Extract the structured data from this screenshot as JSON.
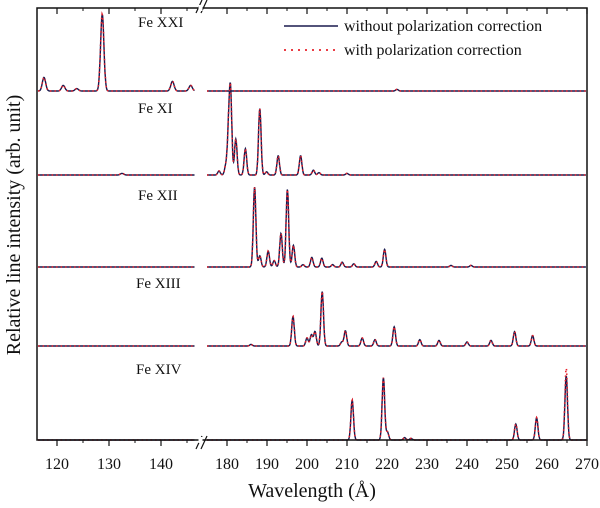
{
  "chart_data": {
    "type": "line",
    "title": "",
    "xlabel": "Wavelength (Å)",
    "ylabel": "Relative line intensity (arb. unit)",
    "xlim_segments": [
      [
        116,
        146
      ],
      [
        175,
        275
      ]
    ],
    "axis_break": "between 146 and 175",
    "x_ticks": [
      120,
      130,
      140,
      180,
      190,
      200,
      210,
      220,
      230,
      240,
      250,
      260,
      270
    ],
    "grid": false,
    "legend": {
      "placement": "top-right",
      "entries": [
        {
          "label": "without polarization correction",
          "style": "solid",
          "color": "#1a1a4e"
        },
        {
          "label": "with polarization correction",
          "style": "dotted",
          "color": "#e8202a"
        }
      ]
    },
    "panels": [
      {
        "label": "Fe XXI",
        "peaks": [
          [
            117.5,
            0.17
          ],
          [
            121.2,
            0.07
          ],
          [
            123.8,
            0.03
          ],
          [
            128.7,
            0.96
          ],
          [
            142.2,
            0.12
          ],
          [
            145.7,
            0.07
          ],
          [
            222.5,
            0.02
          ]
        ]
      },
      {
        "label": "Fe XI",
        "peaks": [
          [
            178.0,
            0.05
          ],
          [
            179.7,
            0.11
          ],
          [
            180.4,
            0.5
          ],
          [
            180.9,
            0.97
          ],
          [
            182.2,
            0.45
          ],
          [
            184.6,
            0.33
          ],
          [
            188.2,
            0.83
          ],
          [
            189.9,
            0.04
          ],
          [
            192.8,
            0.24
          ],
          [
            198.4,
            0.24
          ],
          [
            201.6,
            0.06
          ],
          [
            203.0,
            0.03
          ],
          [
            132.5,
            0.02
          ],
          [
            157.0,
            0.02
          ],
          [
            210.0,
            0.02
          ]
        ]
      },
      {
        "label": "Fe XII",
        "peaks": [
          [
            186.9,
            1.0
          ],
          [
            188.2,
            0.14
          ],
          [
            190.3,
            0.2
          ],
          [
            191.8,
            0.08
          ],
          [
            193.5,
            0.42
          ],
          [
            195.1,
            0.97
          ],
          [
            196.6,
            0.27
          ],
          [
            199.0,
            0.03
          ],
          [
            201.2,
            0.12
          ],
          [
            203.7,
            0.11
          ],
          [
            206.4,
            0.03
          ],
          [
            208.8,
            0.06
          ],
          [
            211.7,
            0.04
          ],
          [
            217.3,
            0.07
          ],
          [
            219.4,
            0.22
          ],
          [
            236.0,
            0.02
          ],
          [
            241.0,
            0.02
          ]
        ]
      },
      {
        "label": "Fe XIII",
        "peaks": [
          [
            186.0,
            0.02
          ],
          [
            196.5,
            0.37
          ],
          [
            200.0,
            0.1
          ],
          [
            201.1,
            0.14
          ],
          [
            202.0,
            0.18
          ],
          [
            203.8,
            0.68
          ],
          [
            208.7,
            0.05
          ],
          [
            209.6,
            0.19
          ],
          [
            213.8,
            0.1
          ],
          [
            217.0,
            0.08
          ],
          [
            221.8,
            0.24
          ],
          [
            228.2,
            0.08
          ],
          [
            233.0,
            0.07
          ],
          [
            240.0,
            0.05
          ],
          [
            246.0,
            0.07
          ],
          [
            251.9,
            0.18
          ],
          [
            256.4,
            0.13
          ]
        ]
      },
      {
        "label": "Fe XIV",
        "peaks": [
          [
            211.3,
            0.5
          ],
          [
            219.1,
            0.78
          ],
          [
            220.1,
            0.1
          ],
          [
            224.4,
            0.03
          ],
          [
            226.0,
            0.02
          ],
          [
            252.2,
            0.2
          ],
          [
            257.4,
            0.28
          ],
          [
            264.8,
            0.8
          ]
        ],
        "corrected_overrides": [
          [
            264.8,
            0.9
          ]
        ]
      }
    ]
  }
}
